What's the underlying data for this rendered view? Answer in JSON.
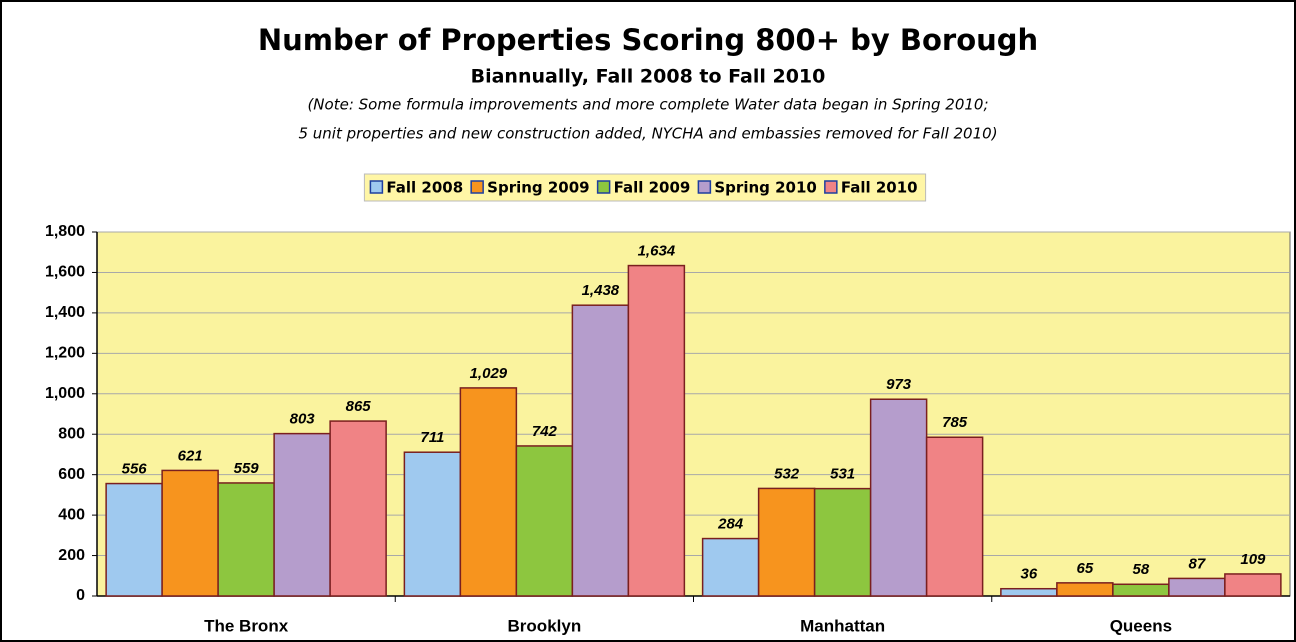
{
  "chart_data": {
    "type": "bar",
    "title": "Number of Properties Scoring 800+ by Borough",
    "subtitle": "Biannually, Fall 2008 to Fall 2010",
    "annotations": [
      "(Note: Some formula improvements and more complete Water data began in Spring 2010;",
      "5 unit properties and new construction added, NYCHA and embassies removed for Fall 2010)"
    ],
    "categories": [
      "The Bronx",
      "Brooklyn",
      "Manhattan",
      "Queens"
    ],
    "series": [
      {
        "name": "Fall 2008",
        "color": "#9fc9ef",
        "values": [
          556,
          711,
          284,
          36
        ],
        "value_labels": [
          "556",
          "711",
          "284",
          "36"
        ]
      },
      {
        "name": "Spring 2009",
        "color": "#f7941e",
        "values": [
          621,
          1029,
          532,
          65
        ],
        "value_labels": [
          "621",
          "1,029",
          "532",
          "65"
        ]
      },
      {
        "name": "Fall 2009",
        "color": "#8dc63f",
        "values": [
          559,
          742,
          531,
          58
        ],
        "value_labels": [
          "559",
          "742",
          "531",
          "58"
        ]
      },
      {
        "name": "Spring 2010",
        "color": "#b59dcc",
        "values": [
          803,
          1438,
          973,
          87
        ],
        "value_labels": [
          "803",
          "1,438",
          "973",
          "87"
        ]
      },
      {
        "name": "Fall 2010",
        "color": "#f08385",
        "values": [
          865,
          1634,
          785,
          109
        ],
        "value_labels": [
          "865",
          "1,634",
          "785",
          "109"
        ]
      }
    ],
    "ylim": [
      0,
      1800
    ],
    "yticks": [
      0,
      200,
      400,
      600,
      800,
      {
        "value": 1000,
        "label": "1,000"
      },
      {
        "value": 1200,
        "label": "1,200"
      },
      {
        "value": 1400,
        "label": "1,400"
      },
      {
        "value": 1600,
        "label": "1,600"
      },
      {
        "value": 1800,
        "label": "1,800"
      }
    ],
    "grid": true,
    "legend": "top"
  }
}
